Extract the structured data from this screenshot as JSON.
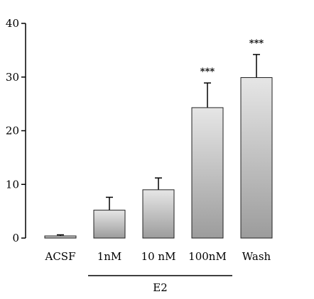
{
  "chart_data": {
    "type": "bar",
    "categories": [
      "ACSF",
      "1nM",
      "10 nM",
      "100nM",
      "Wash"
    ],
    "values": [
      0.4,
      5.2,
      9.0,
      24.3,
      29.9
    ],
    "errors": [
      0.2,
      2.4,
      2.2,
      4.6,
      4.3
    ],
    "significance": [
      "",
      "",
      "",
      "***",
      "***"
    ],
    "ylim": [
      0,
      40
    ],
    "yticks": [
      "0",
      "10",
      "20",
      "30",
      "40"
    ],
    "group": {
      "label": "E2",
      "categories": [
        "1nM",
        "10 nM",
        "100nM",
        "Wash"
      ]
    },
    "title": "",
    "xlabel": "",
    "ylabel": "",
    "colors": {
      "bar_top": "#e6e6e6",
      "bar_bottom": "#9c9c9c",
      "axis": "#000000"
    }
  }
}
